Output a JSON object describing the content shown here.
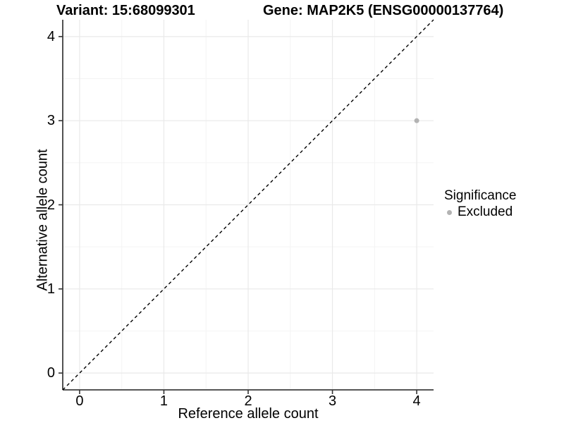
{
  "header": {
    "variant_label": "Variant: 15:68099301",
    "gene_label": "Gene: MAP2K5 (ENSG00000137764)"
  },
  "chart_data": {
    "type": "scatter",
    "title_left": "Variant: 15:68099301",
    "title_right": "Gene: MAP2K5 (ENSG00000137764)",
    "xlabel": "Reference allele count",
    "ylabel": "Alternative allele count",
    "xlim": [
      -0.2,
      4.2
    ],
    "ylim": [
      -0.2,
      4.2
    ],
    "x_ticks": [
      0,
      1,
      2,
      3,
      4
    ],
    "y_ticks": [
      0,
      1,
      2,
      3,
      4
    ],
    "grid": "major+minor",
    "points": [
      {
        "x": 4,
        "y": 3,
        "series": "Excluded"
      }
    ],
    "reference_line": {
      "equation": "y = x",
      "style": "dashed",
      "color": "#000000"
    },
    "legend": {
      "title": "Significance",
      "position": "right",
      "entries": [
        {
          "label": "Excluded",
          "color": "#b3b3b3",
          "marker": "circle"
        }
      ]
    }
  },
  "colors": {
    "background": "#ffffff",
    "grid_major": "#e9e9e9",
    "grid_minor": "#f4f4f4",
    "axis_line": "#3f3f3f",
    "tick_mark": "#333333",
    "point": "#b3b3b3",
    "text": "#000000"
  }
}
